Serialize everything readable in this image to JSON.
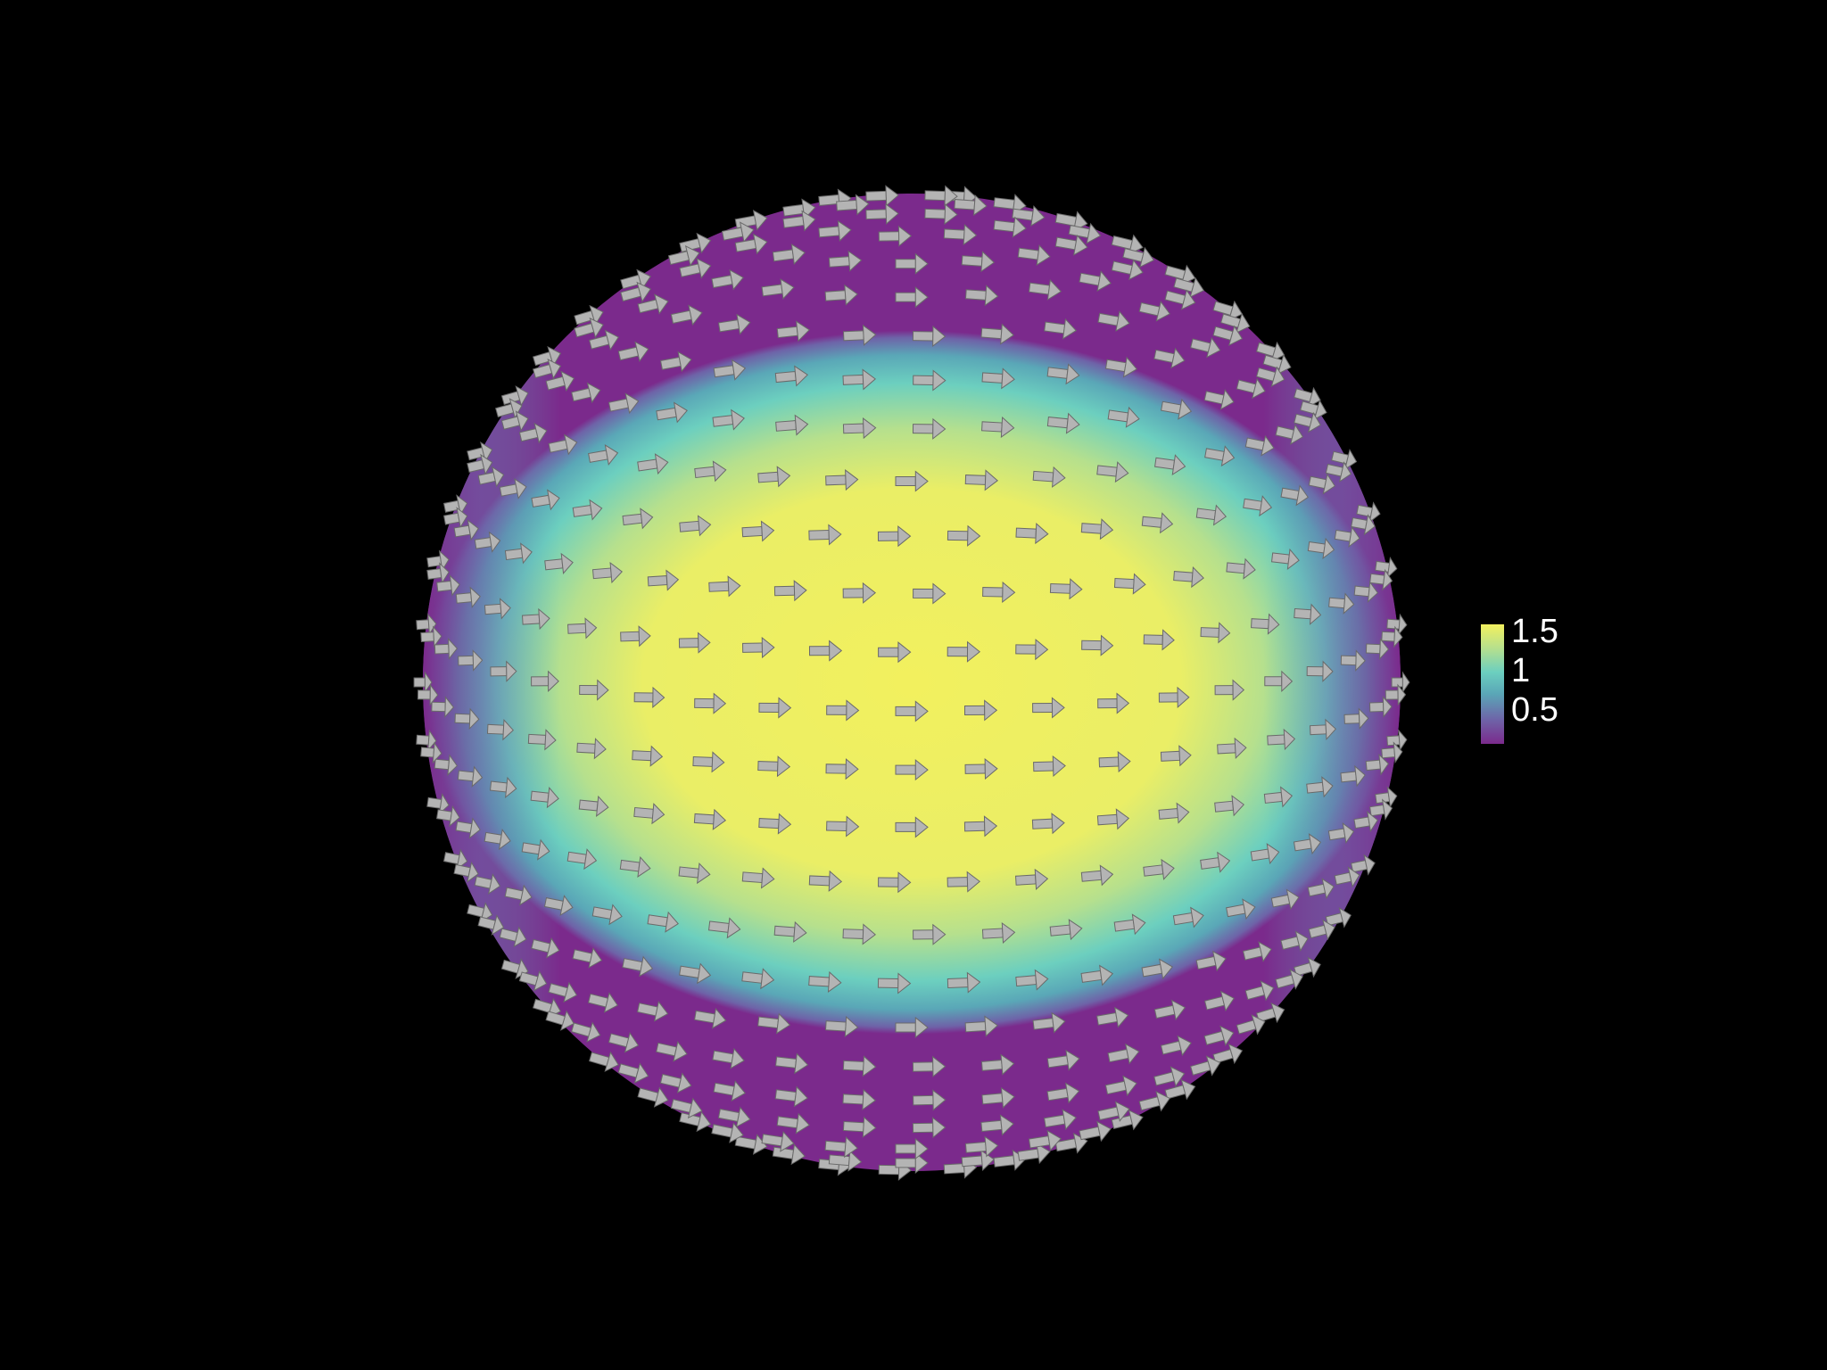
{
  "colors": {
    "background": "#000000",
    "arrow": "#b4b4b4",
    "arrow_edge": "#6a6a6a",
    "colormap": [
      "#7b2a8c",
      "#6e63a8",
      "#5aa7b7",
      "#6ccfbf",
      "#b6e08d",
      "#f2f05e"
    ]
  },
  "scene": {
    "object": "sphere",
    "glyph_icon": "arrow-icon",
    "glyph_direction": "positive-x"
  },
  "colorbar": {
    "ticks": [
      {
        "label": "1.5",
        "value": 1.5
      },
      {
        "label": "1",
        "value": 1
      },
      {
        "label": "0.5",
        "value": 0.5
      }
    ],
    "range": [
      0.3,
      1.55
    ]
  }
}
